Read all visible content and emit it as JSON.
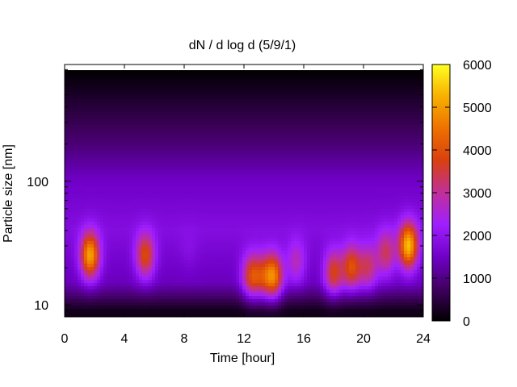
{
  "chart_data": {
    "type": "heatmap",
    "title": "dN / d log d (5/9/1)",
    "xlabel": "Time [hour]",
    "ylabel": "Particle size [nm]",
    "xlim": [
      0,
      24
    ],
    "ylim": [
      8,
      880
    ],
    "yscale": "log",
    "x_ticks": [
      "0",
      "4",
      "8",
      "12",
      "16",
      "20",
      "24"
    ],
    "y_ticks": [
      "10",
      "100"
    ],
    "colorbar": {
      "min": 0,
      "max": 6000,
      "ticks": [
        "0",
        "1000",
        "2000",
        "3000",
        "4000",
        "5000",
        "6000"
      ],
      "colormap": [
        "#000000",
        "#400060",
        "#7000c8",
        "#9f1fff",
        "#c0309a",
        "#d84010",
        "#ee7000",
        "#f8b000",
        "#ffff20"
      ]
    },
    "hotspots": [
      {
        "time": 1.7,
        "size_nm": 25,
        "value": 4800
      },
      {
        "time": 5.4,
        "size_nm": 25,
        "value": 3600
      },
      {
        "time": 8.3,
        "size_nm": 28,
        "value": 1500
      },
      {
        "time": 12.5,
        "size_nm": 17,
        "value": 3600
      },
      {
        "time": 13.3,
        "size_nm": 17,
        "value": 2800
      },
      {
        "time": 14.0,
        "size_nm": 17,
        "value": 4200
      },
      {
        "time": 15.5,
        "size_nm": 22,
        "value": 2500
      },
      {
        "time": 18.0,
        "size_nm": 18,
        "value": 3500
      },
      {
        "time": 19.2,
        "size_nm": 20,
        "value": 3700
      },
      {
        "time": 20.3,
        "size_nm": 20,
        "value": 3000
      },
      {
        "time": 21.5,
        "size_nm": 26,
        "value": 3000
      },
      {
        "time": 23.0,
        "size_nm": 30,
        "value": 5000
      }
    ],
    "background_profile": [
      {
        "size_nm": 800,
        "value": 0
      },
      {
        "size_nm": 500,
        "value": 300
      },
      {
        "size_nm": 200,
        "value": 900
      },
      {
        "size_nm": 100,
        "value": 1500
      },
      {
        "size_nm": 40,
        "value": 1800
      },
      {
        "size_nm": 15,
        "value": 1400
      },
      {
        "size_nm": 9,
        "value": 200
      }
    ]
  }
}
